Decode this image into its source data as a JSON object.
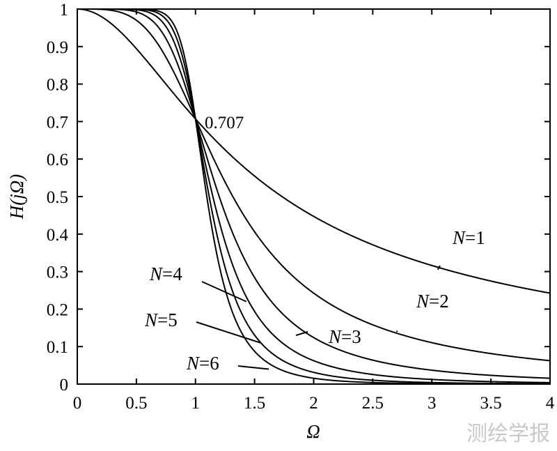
{
  "chart_data": {
    "type": "line",
    "title": "",
    "xlabel": "Ω",
    "ylabel_parts": [
      "H(",
      "j",
      "Ω",
      ")"
    ],
    "xlim": [
      0,
      4
    ],
    "ylim": [
      0,
      1
    ],
    "x_ticks": [
      "0",
      "0.5",
      "1",
      "1.5",
      "2",
      "2.5",
      "3",
      "3.5",
      "4"
    ],
    "y_ticks": [
      "0",
      "0.1",
      "0.2",
      "0.3",
      "0.4",
      "0.5",
      "0.6",
      "0.7",
      "0.8",
      "0.9",
      "1"
    ],
    "grid": false,
    "annotation": {
      "text": "0.707",
      "x": 1,
      "y": 0.707
    },
    "series": [
      {
        "name": "N=1",
        "name_parts": [
          "N",
          "=1"
        ],
        "order": 1,
        "samples": [
          [
            0,
            1
          ],
          [
            0.5,
            0.894
          ],
          [
            1,
            0.707
          ],
          [
            1.5,
            0.555
          ],
          [
            2,
            0.447
          ],
          [
            2.5,
            0.371
          ],
          [
            3,
            0.316
          ],
          [
            3.5,
            0.275
          ],
          [
            4,
            0.243
          ]
        ]
      },
      {
        "name": "N=2",
        "name_parts": [
          "N",
          "=2"
        ],
        "order": 2,
        "samples": [
          [
            0,
            1
          ],
          [
            0.5,
            0.97
          ],
          [
            1,
            0.707
          ],
          [
            1.5,
            0.406
          ],
          [
            2,
            0.243
          ],
          [
            2.5,
            0.158
          ],
          [
            3,
            0.11
          ],
          [
            3.5,
            0.081
          ],
          [
            4,
            0.062
          ]
        ]
      },
      {
        "name": "N=3",
        "name_parts": [
          "N",
          "=3"
        ],
        "order": 3,
        "samples": [
          [
            0,
            1
          ],
          [
            0.5,
            0.992
          ],
          [
            1,
            0.707
          ],
          [
            1.5,
            0.284
          ],
          [
            2,
            0.124
          ],
          [
            2.5,
            0.064
          ],
          [
            3,
            0.037
          ],
          [
            3.5,
            0.023
          ],
          [
            4,
            0.016
          ]
        ]
      },
      {
        "name": "N=4",
        "name_parts": [
          "N",
          "=4"
        ],
        "order": 4,
        "samples": [
          [
            0,
            1
          ],
          [
            0.5,
            0.998
          ],
          [
            1,
            0.707
          ],
          [
            1.5,
            0.194
          ],
          [
            2,
            0.062
          ],
          [
            2.5,
            0.026
          ],
          [
            3,
            0.012
          ],
          [
            3.5,
            0.007
          ],
          [
            4,
            0.004
          ]
        ]
      },
      {
        "name": "N=5",
        "name_parts": [
          "N",
          "=5"
        ],
        "order": 5,
        "samples": [
          [
            0,
            1
          ],
          [
            0.5,
            0.999
          ],
          [
            1,
            0.707
          ],
          [
            1.5,
            0.131
          ],
          [
            2,
            0.031
          ],
          [
            2.5,
            0.01
          ],
          [
            3,
            0.004
          ],
          [
            3.5,
            0.002
          ],
          [
            4,
            0.001
          ]
        ]
      },
      {
        "name": "N=6",
        "name_parts": [
          "N",
          "=6"
        ],
        "order": 6,
        "samples": [
          [
            0,
            1
          ],
          [
            0.5,
            1.0
          ],
          [
            1,
            0.707
          ],
          [
            1.5,
            0.088
          ],
          [
            2,
            0.016
          ],
          [
            2.5,
            0.004
          ],
          [
            3,
            0.001
          ],
          [
            3.5,
            0.001
          ],
          [
            4,
            0.0
          ]
        ]
      }
    ],
    "label_anchors": [
      {
        "series": "N=1",
        "point": [
          3.05,
          0.305
        ]
      },
      {
        "series": "N=2",
        "point": [
          2.7,
          0.14
        ]
      },
      {
        "series": "N=3",
        "point": [
          1.85,
          0.13
        ]
      },
      {
        "series": "N=4",
        "point": [
          1.43,
          0.22
        ]
      },
      {
        "series": "N=5",
        "point": [
          1.55,
          0.11
        ]
      },
      {
        "series": "N=6",
        "point": [
          1.62,
          0.04
        ]
      }
    ]
  },
  "watermark": "测绘学报"
}
